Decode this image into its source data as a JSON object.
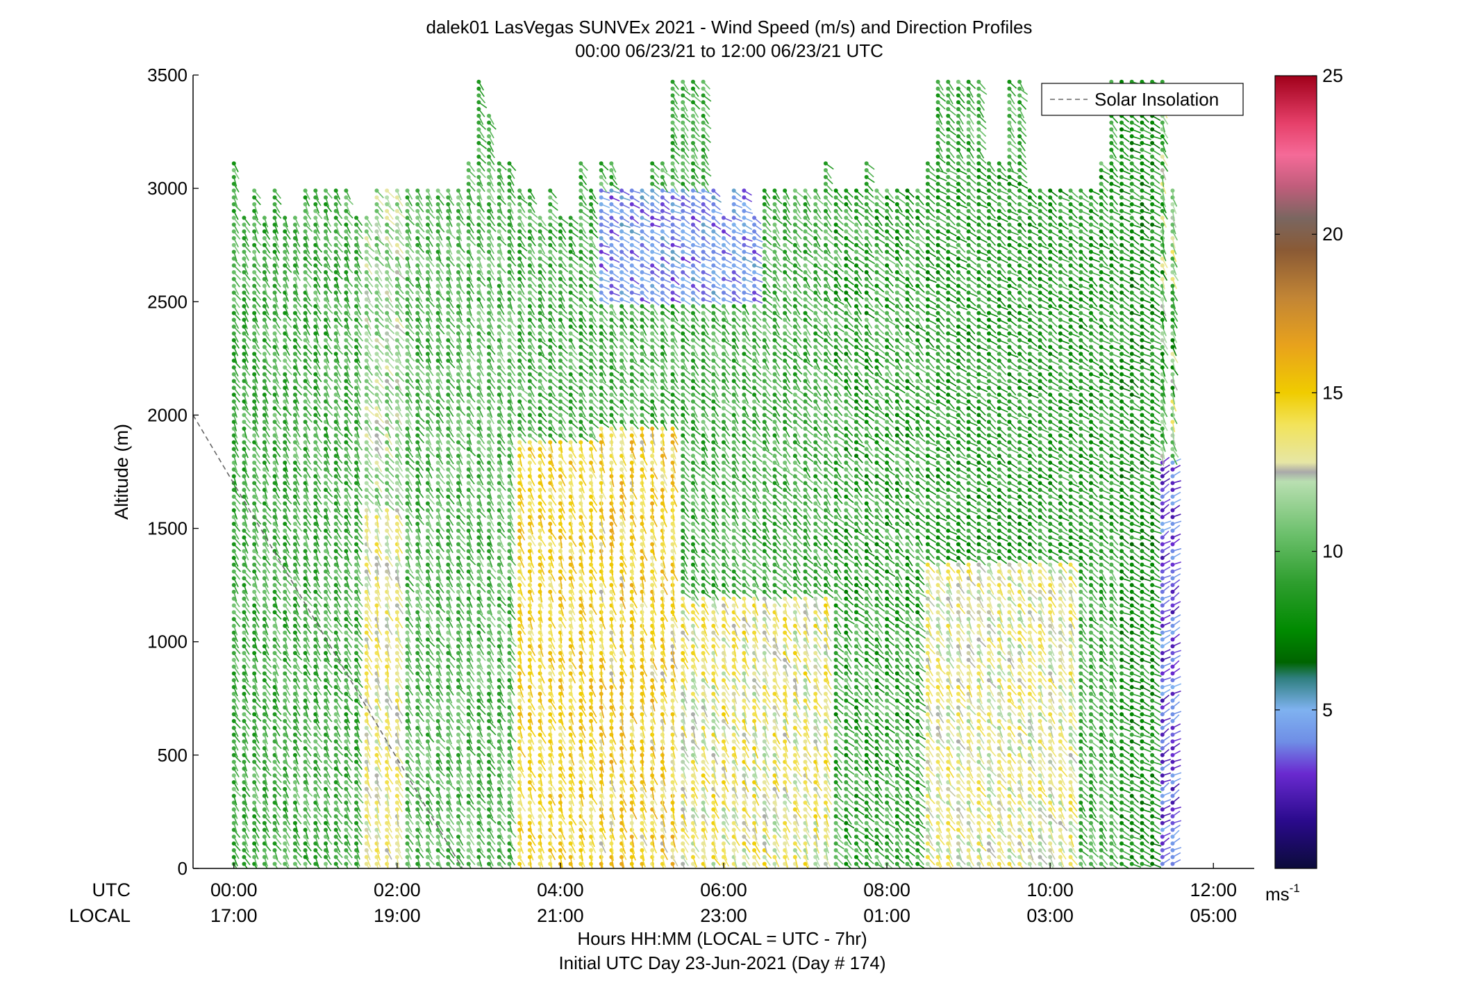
{
  "chart_data": {
    "type": "wind-barb-profile",
    "title": "dalek01 LasVegas SUNVEx 2021 - Wind Speed (m/s) and Direction Profiles",
    "subtitle": "00:00 06/23/21 to 12:00 06/23/21  UTC",
    "ylabel": "Altitude (m)",
    "xlabel": "Hours HH:MM  (LOCAL = UTC - 7hr)",
    "xlabel2": "Initial UTC Day 23-Jun-2021 (Day # 174)",
    "ylim": [
      0,
      3500
    ],
    "xlim_hours": [
      -0.5,
      12.5
    ],
    "yticks": [
      {
        "value": 0,
        "label": "0"
      },
      {
        "value": 500,
        "label": "500"
      },
      {
        "value": 1000,
        "label": "1000"
      },
      {
        "value": 1500,
        "label": "1500"
      },
      {
        "value": 2000,
        "label": "2000"
      },
      {
        "value": 2500,
        "label": "2500"
      },
      {
        "value": 3000,
        "label": "3000"
      },
      {
        "value": 3500,
        "label": "3500"
      }
    ],
    "row_labels": {
      "utc": "UTC",
      "local": "LOCAL"
    },
    "xticks": [
      {
        "hour": 0,
        "utc": "00:00",
        "local": "17:00"
      },
      {
        "hour": 2,
        "utc": "02:00",
        "local": "19:00"
      },
      {
        "hour": 4,
        "utc": "04:00",
        "local": "21:00"
      },
      {
        "hour": 6,
        "utc": "06:00",
        "local": "23:00"
      },
      {
        "hour": 8,
        "utc": "08:00",
        "local": "01:00"
      },
      {
        "hour": 10,
        "utc": "10:00",
        "local": "03:00"
      },
      {
        "hour": 12,
        "utc": "12:00",
        "local": "05:00"
      }
    ],
    "legend": {
      "label": "Solar Insolation",
      "position": "top-right",
      "style": "dashed",
      "color": "#666666"
    },
    "solar_insolation_line": {
      "x_hours": [
        -0.5,
        2.8
      ],
      "y": [
        2000,
        0
      ]
    },
    "colorbar": {
      "range": [
        0,
        25
      ],
      "ticks": [
        5,
        10,
        15,
        20,
        25
      ],
      "unit_base": "ms",
      "unit_exp": "-1",
      "stops": [
        {
          "v": 0,
          "c": "#0b0b3a"
        },
        {
          "v": 1.5,
          "c": "#2a0a8c"
        },
        {
          "v": 3,
          "c": "#6a2ad0"
        },
        {
          "v": 4,
          "c": "#6f8ee6"
        },
        {
          "v": 5,
          "c": "#7fb2f0"
        },
        {
          "v": 6,
          "c": "#2f7f7f"
        },
        {
          "v": 6.5,
          "c": "#006400"
        },
        {
          "v": 7.5,
          "c": "#008a00"
        },
        {
          "v": 9,
          "c": "#2e9e2e"
        },
        {
          "v": 10.5,
          "c": "#6abf6a"
        },
        {
          "v": 12.2,
          "c": "#b9dfb1"
        },
        {
          "v": 12.5,
          "c": "#a9a9a9"
        },
        {
          "v": 12.8,
          "c": "#e6e6a5"
        },
        {
          "v": 14,
          "c": "#f2e35a"
        },
        {
          "v": 15,
          "c": "#f0cc00"
        },
        {
          "v": 16.5,
          "c": "#e8a21c"
        },
        {
          "v": 18,
          "c": "#c28535"
        },
        {
          "v": 19.5,
          "c": "#8a5a35"
        },
        {
          "v": 20.5,
          "c": "#7a6660"
        },
        {
          "v": 21.5,
          "c": "#c05d7b"
        },
        {
          "v": 22.5,
          "c": "#f56a98"
        },
        {
          "v": 23.5,
          "c": "#e6406a"
        },
        {
          "v": 25,
          "c": "#a0001a"
        }
      ]
    },
    "profiles": {
      "time_start_h": 0,
      "time_step_h": 0.125,
      "count": 93,
      "altitude_step_m": 30,
      "top_altitude_m": [
        3120,
        2880,
        2990,
        2880,
        2990,
        2880,
        2880,
        2990,
        2990,
        2990,
        2990,
        2990,
        2880,
        2880,
        2990,
        2990,
        2990,
        2990,
        2990,
        2990,
        2990,
        2990,
        2990,
        3120,
        3470,
        3330,
        3120,
        3120,
        2990,
        2990,
        2880,
        2990,
        2880,
        2880,
        3120,
        2990,
        3120,
        3120,
        2990,
        2990,
        2990,
        3120,
        3120,
        3470,
        3470,
        3470,
        3470,
        2990,
        2880,
        2990,
        2990,
        2880,
        2990,
        2990,
        2990,
        2990,
        2990,
        2990,
        3120,
        2990,
        2990,
        2990,
        3120,
        2990,
        2990,
        2990,
        2990,
        2990,
        3120,
        3470,
        3470,
        3470,
        3470,
        3470,
        3120,
        3120,
        3470,
        3470,
        2990,
        2990,
        2990,
        2990,
        2990,
        2990,
        2990,
        3120,
        3470,
        3470,
        3470,
        3470,
        3470,
        3470,
        2990
      ],
      "bands": [
        {
          "h0": 0,
          "h1": 1.6,
          "a0": 0,
          "a1": 3500,
          "speed": [
            8,
            11
          ],
          "dir": 210
        },
        {
          "h0": 1.6,
          "h1": 2.1,
          "a0": 0,
          "a1": 1600,
          "speed": [
            12,
            14.5
          ],
          "dir": 200
        },
        {
          "h0": 1.6,
          "h1": 2.1,
          "a0": 1600,
          "a1": 3000,
          "speed": [
            10,
            13
          ],
          "dir": 215
        },
        {
          "h0": 2.1,
          "h1": 3.5,
          "a0": 0,
          "a1": 3100,
          "speed": [
            8.5,
            11.5
          ],
          "dir": 210
        },
        {
          "h0": 3.5,
          "h1": 4.5,
          "a0": 0,
          "a1": 1900,
          "speed": [
            13,
            16
          ],
          "dir": 200
        },
        {
          "h0": 4.5,
          "h1": 5.5,
          "a0": 0,
          "a1": 1950,
          "speed": [
            12.5,
            16.5
          ],
          "dir": 195
        },
        {
          "h0": 4.5,
          "h1": 6.5,
          "a0": 2500,
          "a1": 3000,
          "speed": [
            3,
            5.5
          ],
          "dir": 240
        },
        {
          "h0": 5.5,
          "h1": 7.3,
          "a0": 0,
          "a1": 1200,
          "speed": [
            11.5,
            15
          ],
          "dir": 205
        },
        {
          "h0": 7.3,
          "h1": 8.5,
          "a0": 0,
          "a1": 3500,
          "speed": [
            7,
            11
          ],
          "dir": 225
        },
        {
          "h0": 8.5,
          "h1": 10.3,
          "a0": 0,
          "a1": 1350,
          "speed": [
            11.5,
            14.5
          ],
          "dir": 210
        },
        {
          "h0": 8.5,
          "h1": 10.8,
          "a0": 1350,
          "a1": 3100,
          "speed": [
            7,
            10
          ],
          "dir": 235
        },
        {
          "h0": 10.8,
          "h1": 11.3,
          "a0": 0,
          "a1": 3500,
          "speed": [
            6.5,
            9.5
          ],
          "dir": 240
        },
        {
          "h0": 11.3,
          "h1": 11.6,
          "a0": 0,
          "a1": 1800,
          "speed": [
            2,
            5
          ],
          "dir": 300
        },
        {
          "h0": 11.3,
          "h1": 11.6,
          "a0": 1800,
          "a1": 3500,
          "speed": [
            7,
            14
          ],
          "dir": 200
        }
      ]
    }
  }
}
